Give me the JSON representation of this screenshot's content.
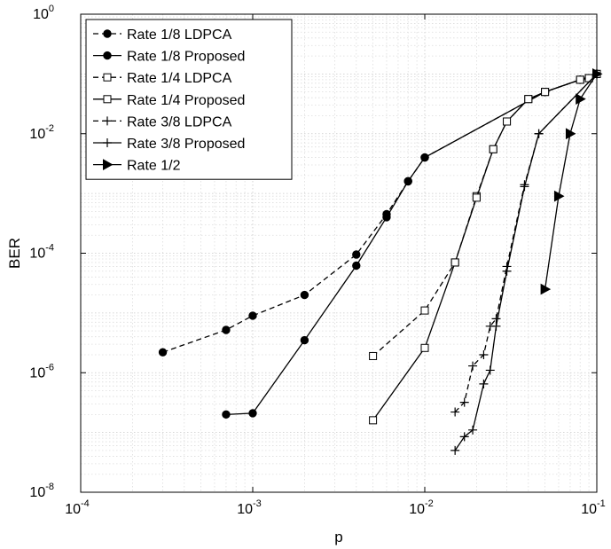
{
  "chart_data": {
    "type": "line",
    "title": "",
    "xlabel": "p",
    "ylabel": "BER",
    "xscale": "log",
    "yscale": "log",
    "xlim": [
      0.0001,
      0.1
    ],
    "ylim": [
      1e-08,
      1
    ],
    "grid": true,
    "legend_position": "top-left",
    "x_ticks": [
      {
        "base": "10",
        "exp": "-4",
        "value": 0.0001
      },
      {
        "base": "10",
        "exp": "-3",
        "value": 0.001
      },
      {
        "base": "10",
        "exp": "-2",
        "value": 0.01
      },
      {
        "base": "10",
        "exp": "-1",
        "value": 0.1
      }
    ],
    "y_ticks": [
      {
        "base": "10",
        "exp": "0",
        "value": 1
      },
      {
        "base": "10",
        "exp": "-2",
        "value": 0.01
      },
      {
        "base": "10",
        "exp": "-4",
        "value": 0.0001
      },
      {
        "base": "10",
        "exp": "-6",
        "value": 1e-06
      },
      {
        "base": "10",
        "exp": "-8",
        "value": 1e-08
      }
    ],
    "series": [
      {
        "name": "Rate 1/8 LDPCA",
        "marker": "circle-filled",
        "dash": "dashed",
        "x": [
          0.0003,
          0.0007,
          0.001,
          0.002,
          0.004,
          0.006,
          0.008,
          0.01,
          0.05,
          0.08,
          0.1
        ],
        "y": [
          2.2e-06,
          5.2e-06,
          9e-06,
          2e-05,
          9.5e-05,
          0.00045,
          0.0016,
          0.004,
          0.05,
          0.08,
          0.1
        ]
      },
      {
        "name": "Rate 1/8 Proposed",
        "marker": "circle-filled",
        "dash": "solid",
        "x": [
          0.0007,
          0.001,
          0.002,
          0.004,
          0.006,
          0.008,
          0.01,
          0.05,
          0.08,
          0.1
        ],
        "y": [
          2e-07,
          2.1e-07,
          3.5e-06,
          6.2e-05,
          0.0004,
          0.0016,
          0.004,
          0.05,
          0.08,
          0.1
        ]
      },
      {
        "name": "Rate 1/4 LDPCA",
        "marker": "square-open",
        "dash": "dashed",
        "x": [
          0.005,
          0.01,
          0.015,
          0.02,
          0.025,
          0.03,
          0.04,
          0.05,
          0.08,
          0.09,
          0.1
        ],
        "y": [
          1.9e-06,
          1.1e-05,
          7e-05,
          0.0009,
          0.0055,
          0.016,
          0.038,
          0.05,
          0.08,
          0.085,
          0.1
        ]
      },
      {
        "name": "Rate 1/4 Proposed",
        "marker": "square-open",
        "dash": "solid",
        "x": [
          0.005,
          0.01,
          0.015,
          0.02,
          0.025,
          0.03,
          0.04,
          0.05,
          0.08,
          0.09,
          0.1
        ],
        "y": [
          1.6e-07,
          2.6e-06,
          7e-05,
          0.00085,
          0.0055,
          0.016,
          0.038,
          0.05,
          0.08,
          0.085,
          0.1
        ]
      },
      {
        "name": "Rate 3/8 LDPCA",
        "marker": "plus",
        "dash": "dashed",
        "x": [
          0.015,
          0.017,
          0.019,
          0.022,
          0.024,
          0.026,
          0.03,
          0.038,
          0.046,
          0.1
        ],
        "y": [
          2.2e-07,
          3.2e-07,
          1.3e-06,
          2e-06,
          6e-06,
          8e-06,
          6e-05,
          0.0014,
          0.01,
          0.1
        ]
      },
      {
        "name": "Rate 3/8 Proposed",
        "marker": "plus",
        "dash": "solid",
        "x": [
          0.015,
          0.017,
          0.019,
          0.022,
          0.024,
          0.026,
          0.03,
          0.038,
          0.046,
          0.1
        ],
        "y": [
          5e-08,
          8.5e-08,
          1.1e-07,
          6.5e-07,
          1.1e-06,
          6e-06,
          5e-05,
          0.0013,
          0.01,
          0.1
        ]
      },
      {
        "name": "Rate 1/2",
        "marker": "triangle-right",
        "dash": "solid",
        "x": [
          0.05,
          0.06,
          0.07,
          0.08,
          0.1
        ],
        "y": [
          2.5e-05,
          0.0009,
          0.01,
          0.038,
          0.1
        ]
      }
    ]
  }
}
